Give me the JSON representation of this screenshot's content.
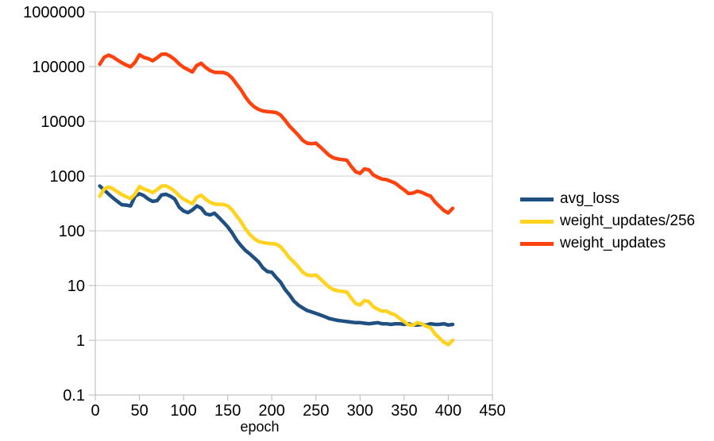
{
  "chart_data": {
    "type": "line",
    "title": "",
    "xlabel": "epoch",
    "ylabel": "",
    "x_scale": "linear",
    "y_scale": "log",
    "grid": true,
    "legend_position": "right",
    "xlim": [
      0,
      450
    ],
    "ylim": [
      0.1,
      1000000
    ],
    "x_ticks": [
      0,
      50,
      100,
      150,
      200,
      250,
      300,
      350,
      400,
      450
    ],
    "y_ticks": [
      0.1,
      1,
      10,
      100,
      1000,
      10000,
      100000,
      1000000
    ],
    "y_tick_labels": [
      "0.1",
      "1",
      "10",
      "100",
      "1000",
      "10000",
      "100000",
      "1000000"
    ],
    "x": [
      5,
      10,
      15,
      20,
      25,
      30,
      35,
      40,
      45,
      50,
      55,
      60,
      65,
      70,
      75,
      80,
      85,
      90,
      95,
      100,
      105,
      110,
      115,
      120,
      125,
      130,
      135,
      140,
      145,
      150,
      155,
      160,
      165,
      170,
      175,
      180,
      185,
      190,
      195,
      200,
      205,
      210,
      215,
      220,
      225,
      230,
      235,
      240,
      245,
      250,
      255,
      260,
      265,
      270,
      275,
      280,
      285,
      290,
      295,
      300,
      305,
      310,
      315,
      320,
      325,
      330,
      335,
      340,
      345,
      350,
      355,
      360,
      365,
      370,
      375,
      380,
      385,
      390,
      395,
      400,
      405
    ],
    "series": [
      {
        "name": "avg_loss",
        "color": "#1f5081",
        "values": [
          660,
          560,
          470,
          400,
          345,
          300,
          295,
          285,
          430,
          475,
          440,
          380,
          345,
          355,
          450,
          465,
          430,
          380,
          270,
          230,
          215,
          240,
          285,
          260,
          205,
          195,
          210,
          175,
          145,
          118,
          92,
          68,
          54,
          44,
          38,
          32,
          27,
          21,
          18,
          17.5,
          14,
          11.5,
          8.5,
          6.8,
          5.2,
          4.4,
          3.9,
          3.5,
          3.3,
          3.1,
          2.9,
          2.7,
          2.5,
          2.4,
          2.3,
          2.25,
          2.2,
          2.15,
          2.1,
          2.1,
          2.05,
          2.0,
          2.05,
          2.1,
          2.0,
          2.0,
          1.95,
          2.0,
          2.0,
          1.95,
          2.0,
          1.9,
          1.9,
          1.95,
          1.9,
          2.0,
          1.95,
          1.95,
          2.0,
          1.9,
          1.95
        ]
      },
      {
        "name": "weight_updates/256",
        "color": "#ffd320",
        "values": [
          430,
          578,
          633,
          586,
          516,
          461,
          418,
          387,
          469,
          645,
          578,
          547,
          500,
          566,
          656,
          664,
          605,
          527,
          438,
          379,
          344,
          313,
          410,
          449,
          379,
          332,
          309,
          305,
          305,
          285,
          242,
          188,
          148,
          109,
          86,
          72,
          64,
          61,
          59,
          58,
          57,
          51,
          41,
          32,
          27,
          22,
          17.6,
          15.6,
          15.2,
          15.6,
          13.3,
          11.1,
          9.4,
          8.4,
          8.0,
          7.8,
          7.6,
          5.9,
          4.7,
          4.4,
          5.3,
          5.1,
          4.1,
          3.7,
          3.4,
          3.4,
          3.1,
          2.9,
          2.5,
          2.2,
          1.9,
          1.9,
          2.1,
          2.0,
          1.8,
          1.7,
          1.3,
          1.1,
          0.92,
          0.83,
          1.0
        ]
      },
      {
        "name": "weight_updates",
        "color": "#ff420e",
        "values": [
          110000,
          148000,
          162000,
          150000,
          132000,
          118000,
          107000,
          99000,
          120000,
          165000,
          148000,
          140000,
          128000,
          145000,
          168000,
          170000,
          155000,
          135000,
          112000,
          97000,
          88000,
          80000,
          105000,
          115000,
          97000,
          85000,
          79000,
          78000,
          78000,
          73000,
          62000,
          48000,
          38000,
          28000,
          22000,
          18500,
          16500,
          15500,
          15000,
          14800,
          14500,
          13000,
          10500,
          8200,
          6800,
          5600,
          4500,
          4000,
          3900,
          4000,
          3400,
          2850,
          2400,
          2150,
          2050,
          2000,
          1950,
          1500,
          1200,
          1120,
          1350,
          1300,
          1050,
          950,
          880,
          860,
          800,
          740,
          640,
          560,
          480,
          490,
          530,
          505,
          460,
          430,
          335,
          280,
          235,
          212,
          258
        ]
      }
    ]
  }
}
